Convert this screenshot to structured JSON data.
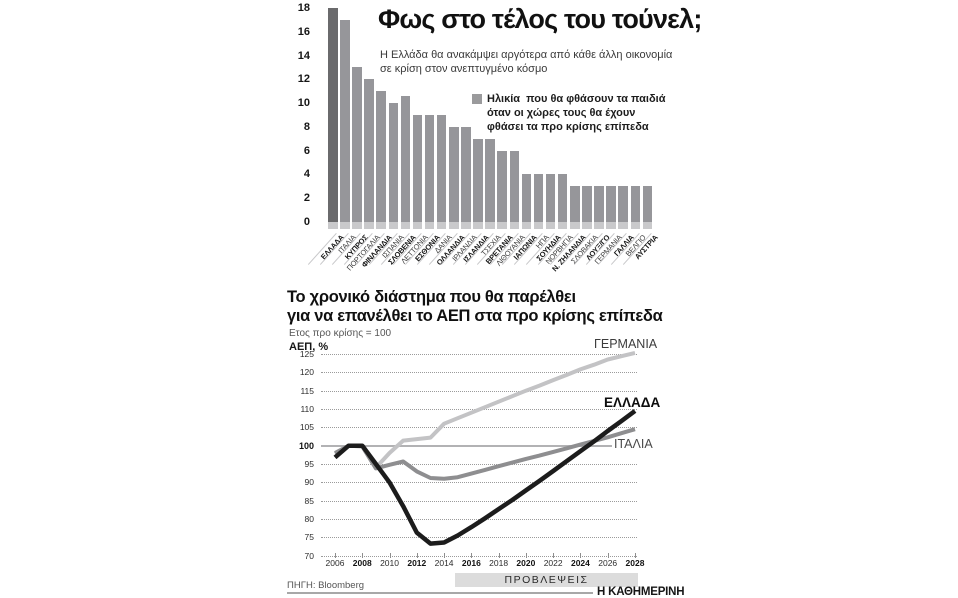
{
  "footer": {
    "source": "ΠΗΓΗ: Bloomberg",
    "brand": "Η ΚΑΘΗΜΕΡΙΝΗ"
  },
  "chart_data": [
    {
      "type": "bar",
      "title": "Φως στο τέλος του τούνελ;",
      "subtitle_lines": [
        "Η Ελλάδα θα ανακάμψει αργότερα από κάθε άλλη οικονομία",
        "σε κρίση στον ανεπτυγμένο κόσμο"
      ],
      "legend_lines": [
        "Ηλικία  που θα φθάσουν τα παιδιά",
        "όταν οι χώρες τους θα έχουν",
        "φθάσει τα προ κρίσης επίπεδα"
      ],
      "ylim": [
        0,
        18
      ],
      "yticks": [
        0,
        2,
        4,
        6,
        8,
        10,
        12,
        14,
        16,
        18
      ],
      "bar_color": "#96969a",
      "highlight_color": "#6a6a6c",
      "highlight_category": "ΕΛΛΑΔΑ",
      "categories": [
        "ΕΛΛΑΔΑ",
        "ΙΤΑΛΙΑ",
        "ΚΥΠΡΟΣ",
        "ΠΟΡΤΟΓΑΛΙΑ",
        "ΦΙΝΛΑΝΔΙΑ",
        "ΙΣΠΑΝΙΑ",
        "ΣΛΟΒΕΝΙΑ",
        "ΛΕΤΤΟΝΙΑ",
        "ΕΣΘΟΝΙΑ",
        "ΔΑΝΙΑ",
        "ΟΛΛΑΝΔΙΑ",
        "ΙΡΛΑΝΔΙΑ",
        "ΙΣΛΑΝΔΙΑ",
        "ΤΣΕΧΙΑ",
        "ΒΡΕΤΑΝΙΑ",
        "ΛΙΘΟΥΑΝΙΑ",
        "ΙΑΠΩΝΙΑ",
        "ΗΠΑ",
        "ΣΟΥΗΔΙΑ",
        "ΝΟΡΒΗΓΙΑ",
        "Ν. ΖΗΛΑΝΔΙΑ",
        "ΣΛΟΒΑΚΙΑ",
        "ΛΟΥΞ/ΓΟ",
        "ΓΕΡΜΑΝΙΑ",
        "ΓΑΛΛΙΑ",
        "ΒΕΛΓΙΟ",
        "ΑΥΣΤΡΙΑ"
      ],
      "values": [
        18,
        17,
        13,
        12,
        11,
        10,
        10.6,
        9,
        9,
        9,
        8,
        8,
        7,
        7,
        6,
        6,
        4,
        4,
        4,
        4,
        3,
        3,
        3,
        3,
        3,
        3,
        3
      ]
    },
    {
      "type": "line",
      "title_lines": [
        "Το χρονικό διάστημα που θα παρέλθει",
        "για να επανέλθει το ΑΕΠ στα προ κρίσης επίπεδα"
      ],
      "note": "Ετος προ κρίσης = 100",
      "ylabel": "ΑΕΠ, %",
      "ylim": [
        70,
        125
      ],
      "yticks": [
        70,
        75,
        80,
        85,
        90,
        95,
        100,
        105,
        110,
        115,
        120,
        125
      ],
      "baseline": 100,
      "x": [
        2006,
        2007,
        2008,
        2009,
        2010,
        2011,
        2012,
        2013,
        2014,
        2015,
        2016,
        2017,
        2018,
        2019,
        2020,
        2021,
        2022,
        2023,
        2024,
        2025,
        2026,
        2027,
        2028
      ],
      "xticks": [
        2006,
        2008,
        2010,
        2012,
        2014,
        2016,
        2018,
        2020,
        2022,
        2024,
        2026,
        2028
      ],
      "forecast_label": "ΠΡΟΒΛΕΨΕΙΣ",
      "forecast_start": 2015,
      "legend_position": "right-end-of-lines",
      "grid": "dotted",
      "series": [
        {
          "name": "ΓΕΡΜΑΝΙΑ",
          "color": "#c3c3c5",
          "width": 4,
          "values": [
            97.8,
            100,
            100,
            94,
            98,
            101.4,
            101.8,
            102.2,
            106,
            107.5,
            109,
            110.5,
            112,
            113.5,
            115,
            116.4,
            117.9,
            119.3,
            120.8,
            122.1,
            123.5,
            124.4,
            125.3
          ]
        },
        {
          "name": "ΙΤΑΛΙΑ",
          "color": "#8e8e90",
          "width": 4,
          "values": [
            98,
            100,
            99.8,
            93.8,
            94.8,
            95.7,
            93,
            91.2,
            91,
            91.4,
            92.4,
            93.4,
            94.4,
            95.4,
            96.4,
            97.3,
            98.3,
            99.3,
            100.3,
            101.3,
            102.3,
            103.4,
            104.5
          ]
        },
        {
          "name": "ΕΛΛΑΔΑ",
          "color": "#1c1c1c",
          "width": 4.5,
          "values": [
            96.8,
            100,
            100,
            95,
            90,
            83.5,
            76.3,
            73.3,
            73.6,
            75.5,
            77.8,
            80.2,
            82.7,
            85.2,
            87.8,
            90.4,
            93.1,
            95.8,
            98.5,
            101.2,
            104,
            106.7,
            109.5
          ]
        }
      ]
    }
  ]
}
